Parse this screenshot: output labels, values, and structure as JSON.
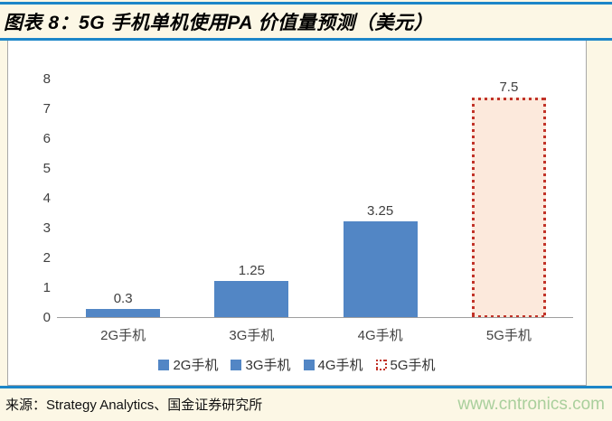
{
  "header": {
    "title": "图表 8：5G 手机单机使用PA 价值量预测（美元）"
  },
  "chart_data": {
    "type": "bar",
    "title": "5G 手机单机使用PA 价值量预测（美元）",
    "categories": [
      "2G手机",
      "3G手机",
      "4G手机",
      "5G手机"
    ],
    "values": [
      0.3,
      1.25,
      3.25,
      7.5
    ],
    "value_labels": [
      "0.3",
      "1.25",
      "3.25",
      "7.5"
    ],
    "bar_styles": [
      "solid",
      "solid",
      "solid",
      "dotted-outline"
    ],
    "xlabel": "",
    "ylabel": "",
    "ylim": [
      0,
      8
    ],
    "yticks": [
      0,
      1,
      2,
      3,
      4,
      5,
      6,
      7,
      8
    ],
    "grid": false,
    "legend": [
      "2G手机",
      "3G手机",
      "4G手机",
      "5G手机"
    ],
    "legend_position": "bottom",
    "colors": {
      "bar_fill": "#5286C5",
      "forecast_fill": "#FCE9DC",
      "forecast_border": "#C13228"
    }
  },
  "footer": {
    "source": "来源：Strategy Analytics、国金证券研究所",
    "url": "www.cntronics.com"
  },
  "colors": {
    "page_bg": "#FCF7E5",
    "rule_blue": "#1C86C8",
    "url_green": "#A9CF9C"
  }
}
